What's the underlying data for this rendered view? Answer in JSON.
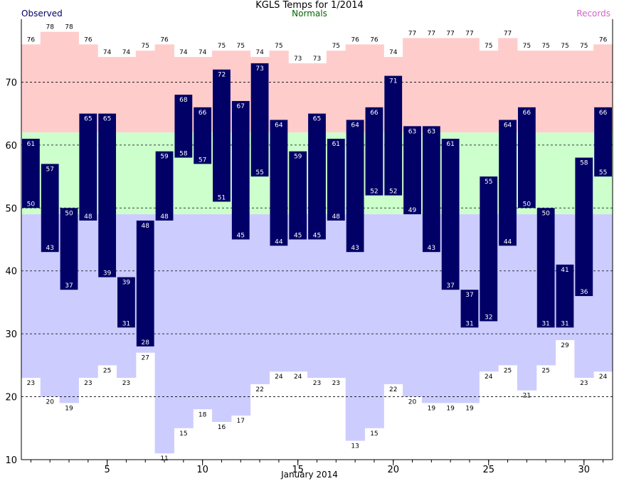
{
  "chart_data": {
    "type": "bar",
    "title": "KGLS Temps for 1/2014",
    "xlabel": "January 2014",
    "ylabel": "",
    "ylim": [
      10,
      80
    ],
    "yticks": [
      10,
      20,
      30,
      40,
      50,
      60,
      70
    ],
    "xticks": [
      5,
      10,
      15,
      20,
      25,
      30
    ],
    "grid": true,
    "legend": [
      {
        "name": "Observed",
        "color": "#000066"
      },
      {
        "name": "Normals",
        "color": "#006600"
      },
      {
        "name": "Records",
        "color": "#cc66cc"
      }
    ],
    "days": [
      1,
      2,
      3,
      4,
      5,
      6,
      7,
      8,
      9,
      10,
      11,
      12,
      13,
      14,
      15,
      16,
      17,
      18,
      19,
      20,
      21,
      22,
      23,
      24,
      25,
      26,
      27,
      28,
      29,
      30,
      31
    ],
    "observed_high": [
      61,
      57,
      50,
      65,
      65,
      39,
      48,
      59,
      68,
      66,
      72,
      67,
      73,
      64,
      59,
      65,
      61,
      64,
      66,
      71,
      63,
      63,
      61,
      37,
      55,
      64,
      66,
      50,
      41,
      58,
      66
    ],
    "observed_low": [
      50,
      43,
      37,
      48,
      39,
      31,
      28,
      48,
      58,
      57,
      51,
      45,
      55,
      44,
      45,
      45,
      48,
      43,
      52,
      52,
      49,
      43,
      37,
      31,
      32,
      44,
      50,
      31,
      31,
      36,
      55
    ],
    "record_high": [
      76,
      78,
      78,
      76,
      74,
      74,
      75,
      76,
      74,
      74,
      75,
      75,
      74,
      75,
      73,
      73,
      75,
      76,
      76,
      74,
      77,
      77,
      77,
      77,
      75,
      77,
      75,
      75,
      75,
      75,
      76
    ],
    "record_low": [
      23,
      20,
      19,
      23,
      25,
      23,
      27,
      11,
      15,
      18,
      16,
      17,
      22,
      24,
      24,
      23,
      23,
      13,
      15,
      22,
      20,
      19,
      19,
      19,
      24,
      25,
      21,
      25,
      29,
      23,
      24
    ],
    "normal_high": 62,
    "normal_low": 49,
    "colors": {
      "observed": "#000066",
      "record_high_band": "#ffcccc",
      "normal_band": "#ccffcc",
      "record_low_band": "#ccccff",
      "grid": "#000000",
      "label_on_bar": "#ffffff",
      "label_outside": "#000000"
    }
  }
}
